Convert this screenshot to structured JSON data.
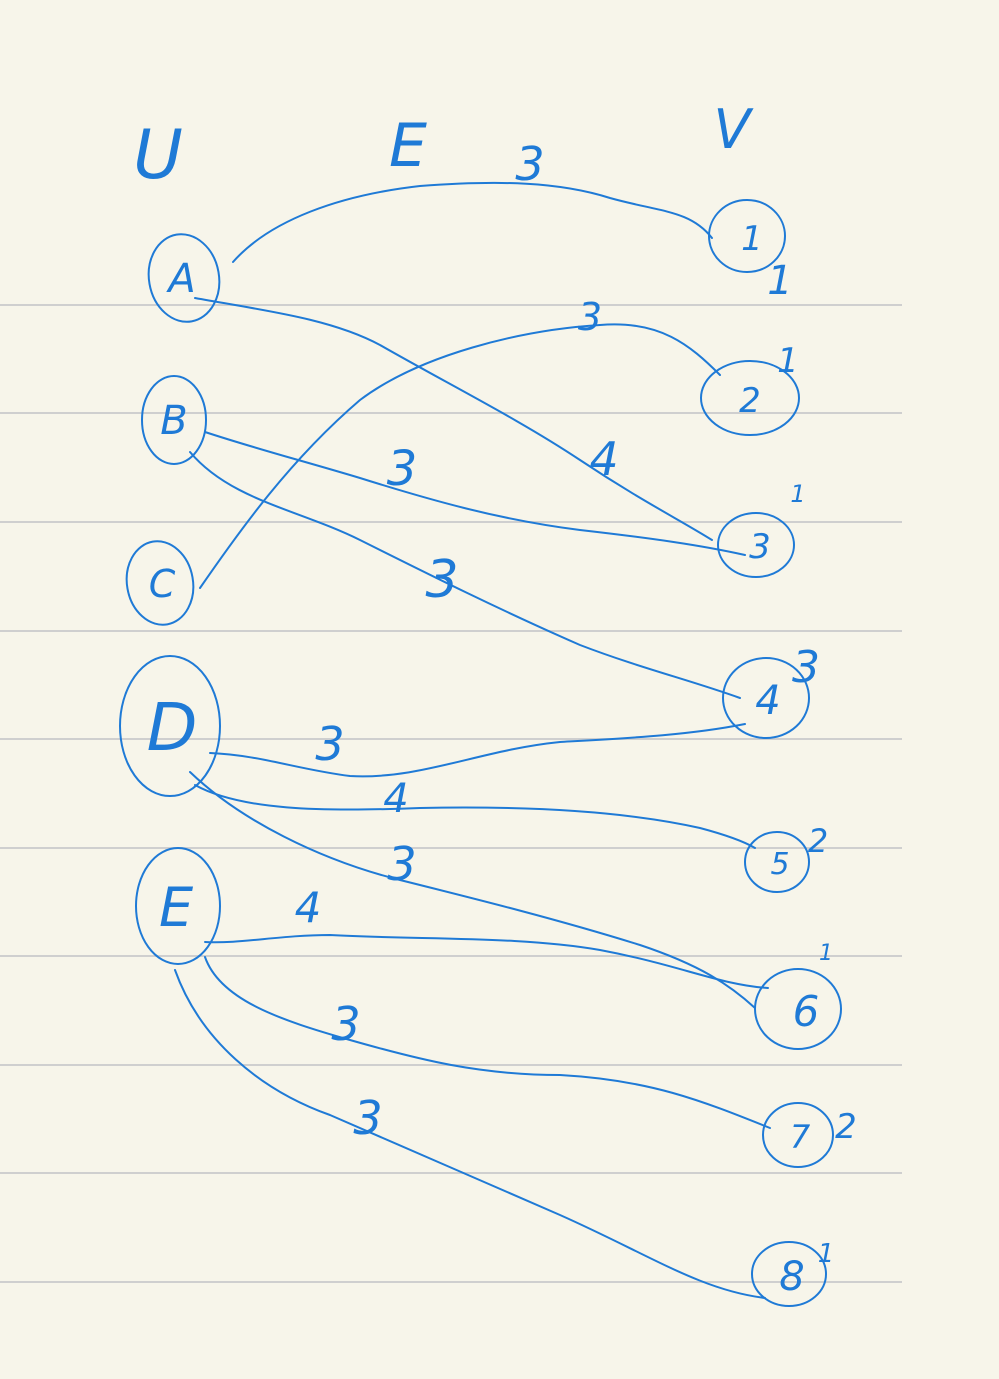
{
  "headers": {
    "left_set": "U",
    "edge_set": "E",
    "right_set": "V"
  },
  "colors": {
    "paper": "#f7f5ea",
    "ink": "#1f7ad6",
    "rule": "#cfcfcf"
  },
  "left_nodes": [
    "A",
    "B",
    "C",
    "D",
    "E"
  ],
  "right_nodes": [
    {
      "label": "1",
      "mark": "1"
    },
    {
      "label": "2",
      "mark": "1"
    },
    {
      "label": "3",
      "mark": "1"
    },
    {
      "label": "4",
      "mark": "3"
    },
    {
      "label": "5",
      "mark": "2"
    },
    {
      "label": "6",
      "mark": "1"
    },
    {
      "label": "7",
      "mark": "2"
    },
    {
      "label": "8",
      "mark": "1"
    }
  ],
  "edges": [
    {
      "from": "A",
      "to": "1",
      "weight": "3"
    },
    {
      "from": "A",
      "to": "3",
      "weight": "4"
    },
    {
      "from": "C",
      "to": "2",
      "weight": "3"
    },
    {
      "from": "B",
      "to": "3",
      "weight": "3"
    },
    {
      "from": "B",
      "to": "4",
      "weight": "3"
    },
    {
      "from": "D",
      "to": "4",
      "weight": "3"
    },
    {
      "from": "D",
      "to": "5",
      "weight": "4"
    },
    {
      "from": "D",
      "to": "6",
      "weight": "3"
    },
    {
      "from": "E",
      "to": "6",
      "weight": "4"
    },
    {
      "from": "E",
      "to": "7",
      "weight": "3"
    },
    {
      "from": "E",
      "to": "8",
      "weight": "3"
    }
  ]
}
